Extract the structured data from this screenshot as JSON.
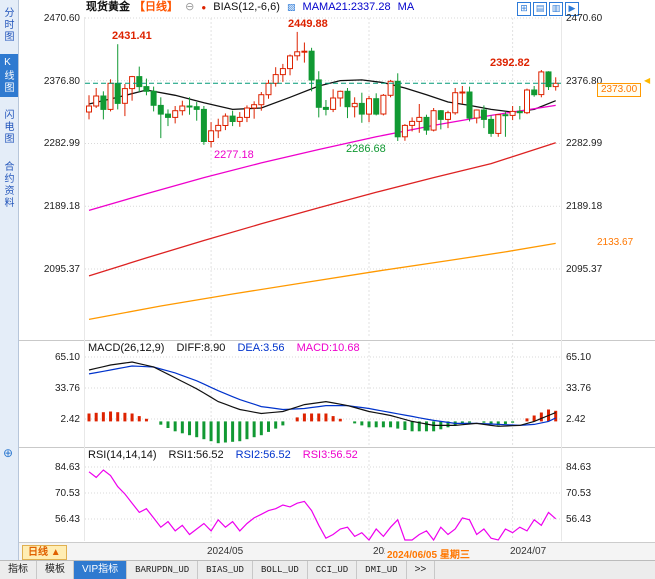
{
  "header": {
    "symbol": "现货黄金",
    "period_tag": "【日线】",
    "collapse_glyph": "⊖",
    "dot_glyph": "●",
    "bias": "BIAS(12,-6,6)",
    "chart_glyph": "▨",
    "mama": "MAMA21:2337.28",
    "ma": "MA",
    "window_icons": [
      {
        "name": "add-panel-icon",
        "glyph": "⊞"
      },
      {
        "name": "layout-icon",
        "glyph": "▤"
      },
      {
        "name": "grid-icon",
        "glyph": "▥"
      },
      {
        "name": "next-window-icon",
        "glyph": "▶"
      }
    ]
  },
  "sidebar": {
    "items": [
      {
        "label": "分时图",
        "active": false
      },
      {
        "label": "K线图",
        "active": true
      },
      {
        "label": "闪电图",
        "active": false
      },
      {
        "label": "合约资料",
        "active": false
      }
    ],
    "tool_glyph": "⊕"
  },
  "axes": {
    "main_left": [
      "2470.60",
      "2376.80",
      "2282.99",
      "2189.18",
      "2095.37"
    ],
    "main_right": [
      "2470.60",
      "2376.80",
      "2282.99",
      "2189.18",
      "2095.37"
    ],
    "price_box": "2373.00",
    "orange_right": "2133.67",
    "marker_glyph": "◀",
    "macd": [
      "65.10",
      "33.76",
      "2.42"
    ],
    "rsi": [
      "84.63",
      "70.53",
      "56.43"
    ]
  },
  "annotations": {
    "high_apr": "2431.41",
    "high_may": "2449.88",
    "high_jul": "2392.82",
    "low_may": "2277.18",
    "low_jun": "2286.68"
  },
  "macd_panel": {
    "title": "MACD(26,12,9)",
    "diff": "DIFF:8.90",
    "dea": "DEA:3.56",
    "macd": "MACD:10.68"
  },
  "rsi_panel": {
    "title": "RSI(14,14,14)",
    "r1": "RSI1:56.52",
    "r2": "RSI2:56.52",
    "r3": "RSI3:56.52"
  },
  "timebar": {
    "period": "日线",
    "arrow": "▲",
    "t1": "2024/05",
    "t2": "2024/06",
    "date_label": "2024/06/05 星期三",
    "t3": "2024/07"
  },
  "tabs": [
    {
      "label": "指标",
      "active": false
    },
    {
      "label": "模板",
      "active": false
    },
    {
      "label": "VIP指标",
      "active": true
    },
    {
      "label": "BARUPDN_UD",
      "active": false
    },
    {
      "label": "BIAS_UD",
      "active": false
    },
    {
      "label": "BOLL_UD",
      "active": false
    },
    {
      "label": "CCI_UD",
      "active": false
    },
    {
      "label": "DMI_UD",
      "active": false
    },
    {
      "label": ">>",
      "active": false
    }
  ],
  "chart_data": {
    "type": "candlestick",
    "title": "现货黄金 日线",
    "price_ticks": [
      2470.6,
      2376.8,
      2282.99,
      2189.18,
      2095.37
    ],
    "last_close": 2373.0,
    "month_tick_indices": [
      17,
      39,
      59
    ],
    "candles": [
      [
        2330,
        2355,
        2319,
        2339
      ],
      [
        2339,
        2366,
        2336,
        2354
      ],
      [
        2354,
        2361,
        2319,
        2334
      ],
      [
        2334,
        2379,
        2331,
        2373
      ],
      [
        2373,
        2431.41,
        2334,
        2343
      ],
      [
        2343,
        2372,
        2324,
        2365
      ],
      [
        2365,
        2384,
        2347,
        2383
      ],
      [
        2383,
        2398,
        2360,
        2368
      ],
      [
        2368,
        2380,
        2355,
        2361
      ],
      [
        2361,
        2368,
        2331,
        2340
      ],
      [
        2340,
        2352,
        2291,
        2327
      ],
      [
        2327,
        2334,
        2309,
        2322
      ],
      [
        2322,
        2339,
        2313,
        2332
      ],
      [
        2332,
        2347,
        2325,
        2339
      ],
      [
        2339,
        2352,
        2326,
        2338
      ],
      [
        2338,
        2345,
        2317,
        2334
      ],
      [
        2334,
        2339,
        2281,
        2286
      ],
      [
        2286,
        2315,
        2277.18,
        2302
      ],
      [
        2302,
        2320,
        2291,
        2310
      ],
      [
        2310,
        2328,
        2303,
        2324
      ],
      [
        2324,
        2332,
        2309,
        2316
      ],
      [
        2316,
        2330,
        2308,
        2322
      ],
      [
        2322,
        2340,
        2315,
        2336
      ],
      [
        2336,
        2346,
        2320,
        2341
      ],
      [
        2341,
        2360,
        2332,
        2356
      ],
      [
        2356,
        2378,
        2350,
        2373
      ],
      [
        2373,
        2397,
        2368,
        2386
      ],
      [
        2386,
        2402,
        2375,
        2395
      ],
      [
        2395,
        2416,
        2385,
        2414
      ],
      [
        2414,
        2449.88,
        2407,
        2420
      ],
      [
        2420,
        2434,
        2404,
        2421
      ],
      [
        2421,
        2426,
        2361,
        2378
      ],
      [
        2378,
        2391,
        2322,
        2337
      ],
      [
        2337,
        2348,
        2325,
        2334
      ],
      [
        2334,
        2364,
        2330,
        2351
      ],
      [
        2351,
        2362,
        2338,
        2361
      ],
      [
        2361,
        2366,
        2321,
        2338
      ],
      [
        2338,
        2352,
        2322,
        2343
      ],
      [
        2343,
        2359,
        2314,
        2327
      ],
      [
        2327,
        2354,
        2315,
        2350
      ],
      [
        2350,
        2358,
        2325,
        2327
      ],
      [
        2327,
        2357,
        2325,
        2355
      ],
      [
        2355,
        2378,
        2352,
        2376
      ],
      [
        2376,
        2388,
        2286.68,
        2293
      ],
      [
        2293,
        2312,
        2287,
        2310
      ],
      [
        2310,
        2322,
        2301,
        2316
      ],
      [
        2316,
        2342,
        2299,
        2322
      ],
      [
        2322,
        2326,
        2296,
        2303
      ],
      [
        2303,
        2336,
        2301,
        2332
      ],
      [
        2332,
        2333,
        2304,
        2319
      ],
      [
        2319,
        2332,
        2306,
        2329
      ],
      [
        2329,
        2366,
        2326,
        2359
      ],
      [
        2359,
        2369,
        2342,
        2360
      ],
      [
        2360,
        2368,
        2316,
        2321
      ],
      [
        2321,
        2334,
        2313,
        2333
      ],
      [
        2333,
        2340,
        2306,
        2319
      ],
      [
        2319,
        2325,
        2293,
        2298
      ],
      [
        2298,
        2327,
        2293,
        2326
      ],
      [
        2326,
        2330,
        2293,
        2325
      ],
      [
        2325,
        2339,
        2318,
        2331
      ],
      [
        2331,
        2339,
        2319,
        2329
      ],
      [
        2329,
        2365,
        2327,
        2363
      ],
      [
        2363,
        2369,
        2353,
        2356
      ],
      [
        2356,
        2392.82,
        2352,
        2390
      ],
      [
        2390,
        2391,
        2363,
        2368
      ],
      [
        2368,
        2382,
        2362,
        2373
      ]
    ],
    "ma_lines": [
      {
        "name": "ma-short-black",
        "color": "#111111",
        "points": [
          [
            0,
            2342
          ],
          [
            4,
            2352
          ],
          [
            8,
            2363
          ],
          [
            12,
            2355
          ],
          [
            16,
            2344
          ],
          [
            20,
            2334
          ],
          [
            24,
            2336
          ],
          [
            28,
            2352
          ],
          [
            32,
            2369
          ],
          [
            35,
            2377
          ],
          [
            38,
            2378
          ],
          [
            41,
            2374
          ],
          [
            44,
            2366
          ],
          [
            47,
            2356
          ],
          [
            50,
            2345
          ],
          [
            53,
            2340
          ],
          [
            56,
            2334
          ],
          [
            59,
            2330
          ],
          [
            62,
            2334
          ],
          [
            65,
            2347
          ]
        ]
      },
      {
        "name": "ma-mid-magenta",
        "color": "#ee00cc",
        "points": [
          [
            0,
            2183
          ],
          [
            8,
            2208
          ],
          [
            16,
            2232
          ],
          [
            24,
            2254
          ],
          [
            32,
            2274
          ],
          [
            40,
            2293
          ],
          [
            48,
            2310
          ],
          [
            56,
            2325
          ],
          [
            65,
            2340
          ]
        ]
      },
      {
        "name": "ma-long-red",
        "color": "#dd2222",
        "points": [
          [
            0,
            2085
          ],
          [
            8,
            2112
          ],
          [
            16,
            2138
          ],
          [
            24,
            2163
          ],
          [
            32,
            2187
          ],
          [
            40,
            2210
          ],
          [
            48,
            2232
          ],
          [
            56,
            2253
          ],
          [
            65,
            2284
          ]
        ]
      },
      {
        "name": "ma-longest-orange",
        "color": "#ff9900",
        "points": [
          [
            0,
            2020
          ],
          [
            10,
            2040
          ],
          [
            20,
            2058
          ],
          [
            30,
            2075
          ],
          [
            40,
            2092
          ],
          [
            50,
            2108
          ],
          [
            58,
            2121
          ],
          [
            65,
            2133.67
          ]
        ]
      }
    ],
    "macd": {
      "ticks": [
        65.1,
        33.76,
        2.42
      ],
      "diff": 8.9,
      "dea": 3.56,
      "macd": 10.68,
      "colors": {
        "diff": "#111111",
        "dea": "#0033cc"
      },
      "diff_points": [
        [
          0,
          52
        ],
        [
          3,
          57
        ],
        [
          6,
          60
        ],
        [
          9,
          55
        ],
        [
          12,
          44
        ],
        [
          15,
          33
        ],
        [
          18,
          20
        ],
        [
          21,
          12
        ],
        [
          24,
          8
        ],
        [
          27,
          10
        ],
        [
          30,
          17
        ],
        [
          33,
          20
        ],
        [
          36,
          16
        ],
        [
          39,
          10
        ],
        [
          42,
          6
        ],
        [
          45,
          0
        ],
        [
          48,
          -4
        ],
        [
          51,
          -4
        ],
        [
          54,
          -2
        ],
        [
          57,
          -5
        ],
        [
          60,
          -4
        ],
        [
          62,
          0
        ],
        [
          64,
          6
        ],
        [
          65,
          8.9
        ]
      ],
      "dea_points": [
        [
          0,
          48
        ],
        [
          3,
          52
        ],
        [
          6,
          56
        ],
        [
          9,
          55
        ],
        [
          12,
          49
        ],
        [
          15,
          41
        ],
        [
          18,
          31
        ],
        [
          21,
          22
        ],
        [
          24,
          15
        ],
        [
          27,
          12
        ],
        [
          30,
          13
        ],
        [
          33,
          16
        ],
        [
          36,
          16
        ],
        [
          39,
          13
        ],
        [
          42,
          9
        ],
        [
          45,
          5
        ],
        [
          48,
          1
        ],
        [
          51,
          -2
        ],
        [
          54,
          -2
        ],
        [
          57,
          -3
        ],
        [
          60,
          -4
        ],
        [
          62,
          -3
        ],
        [
          64,
          0
        ],
        [
          65,
          3.56
        ]
      ]
    },
    "rsi": {
      "ticks": [
        84.63,
        70.53,
        56.43
      ],
      "color": "#ee00ee",
      "values": [
        82,
        79,
        83,
        80,
        74,
        70,
        65,
        60,
        62,
        57,
        52,
        55,
        50,
        53,
        48,
        51,
        54,
        50,
        56,
        52,
        55,
        50,
        54,
        57,
        59,
        61,
        62,
        64,
        63,
        65,
        66,
        61,
        53,
        46,
        48,
        51,
        52,
        47,
        49,
        44,
        51,
        47,
        52,
        56,
        42,
        45,
        48,
        50,
        45,
        52,
        48,
        51,
        57,
        56,
        48,
        51,
        46,
        42,
        51,
        49,
        52,
        50,
        56,
        53,
        60,
        56.52
      ]
    },
    "colors": {
      "up": "#dd2200",
      "down": "#119933",
      "grid": "#d9d9d9",
      "price_line": "#009977"
    }
  }
}
